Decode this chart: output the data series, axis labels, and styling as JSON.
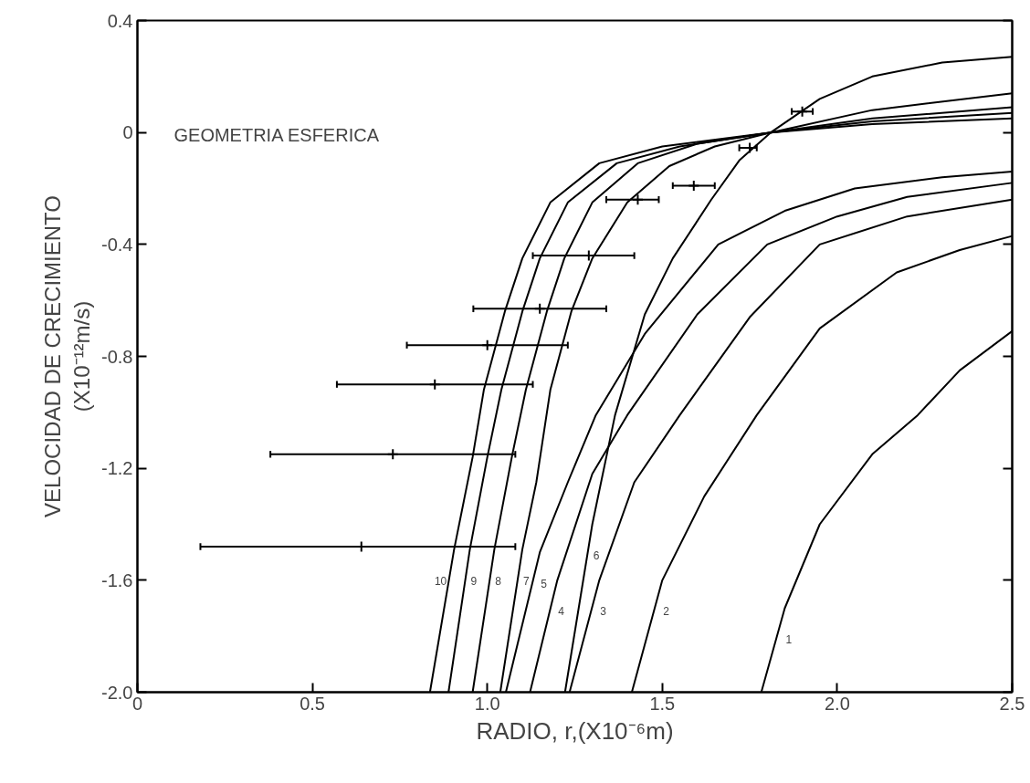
{
  "chart_data": {
    "type": "line",
    "xlabel": "RADIO, r,(X10⁻⁶m)",
    "ylabel": "VELOCIDAD DE CRECIMIENTO\n(X10⁻¹²m/s)",
    "xlim": [
      0,
      2.5
    ],
    "ylim": [
      -2.0,
      0.4
    ],
    "xticks": [
      0,
      0.5,
      {
        "value": 1.0,
        "label": "1.0"
      },
      1.5,
      {
        "value": 2.0,
        "label": "2.0"
      },
      2.5
    ],
    "yticks": [
      0.4,
      0,
      -0.4,
      -0.8,
      -1.2,
      -1.6,
      {
        "value": -2.0,
        "label": "-2.0"
      }
    ],
    "grid": false,
    "marker": "none",
    "line_style": "solid",
    "series": [
      {
        "name": "1",
        "color": "#000000",
        "x": [
          1.783,
          1.85,
          1.95,
          2.1,
          2.23,
          2.35,
          2.5
        ],
        "values": [
          -2,
          -1.7,
          -1.4,
          -1.15,
          -1.01,
          -0.85,
          -0.71
        ]
      },
      {
        "name": "2",
        "color": "#000000",
        "x": [
          1.413,
          1.5,
          1.62,
          1.77,
          1.95,
          2.17,
          2.35,
          2.5
        ],
        "values": [
          -2,
          -1.6,
          -1.3,
          -1.01,
          -0.7,
          -0.5,
          -0.42,
          -0.37
        ]
      },
      {
        "name": "3",
        "color": "#000000",
        "x": [
          1.235,
          1.32,
          1.42,
          1.55,
          1.75,
          1.95,
          2.2,
          2.5
        ],
        "values": [
          -2,
          -1.6,
          -1.25,
          -1.01,
          -0.66,
          -0.4,
          -0.3,
          -0.24
        ]
      },
      {
        "name": "4",
        "color": "#000000",
        "x": [
          1.122,
          1.2,
          1.3,
          1.4,
          1.6,
          1.8,
          2.0,
          2.2,
          2.5
        ],
        "values": [
          -2,
          -1.6,
          -1.22,
          -1.01,
          -0.65,
          -0.4,
          -0.3,
          -0.23,
          -0.18
        ]
      },
      {
        "name": "5",
        "color": "#000000",
        "x": [
          1.053,
          1.15,
          1.23,
          1.31,
          1.45,
          1.66,
          1.85,
          2.05,
          2.3,
          2.5
        ],
        "values": [
          -2,
          -1.5,
          -1.25,
          -1.01,
          -0.72,
          -0.4,
          -0.28,
          -0.2,
          -0.16,
          -0.14
        ]
      },
      {
        "name": "6",
        "color": "#000000",
        "x": [
          1.222,
          1.3,
          1.365,
          1.45,
          1.53,
          1.64,
          1.72,
          1.81,
          1.95,
          2.1,
          2.3,
          2.5
        ],
        "values": [
          -2,
          -1.4,
          -1.01,
          -0.65,
          -0.45,
          -0.24,
          -0.1,
          0,
          0.12,
          0.2,
          0.25,
          0.27
        ]
      },
      {
        "name": "7",
        "color": "#000000",
        "x": [
          1.037,
          1.1,
          1.14,
          1.18,
          1.24,
          1.3,
          1.4,
          1.52,
          1.65,
          1.81,
          2.1,
          2.5
        ],
        "values": [
          -2,
          -1.49,
          -1.25,
          -0.92,
          -0.64,
          -0.45,
          -0.25,
          -0.12,
          -0.05,
          0,
          0.08,
          0.14
        ]
      },
      {
        "name": "8",
        "color": "#000000",
        "x": [
          0.958,
          1.02,
          1.07,
          1.11,
          1.17,
          1.22,
          1.3,
          1.43,
          1.6,
          1.81,
          2.1,
          2.5
        ],
        "values": [
          -2,
          -1.49,
          -1.16,
          -0.92,
          -0.64,
          -0.45,
          -0.25,
          -0.11,
          -0.04,
          0,
          0.05,
          0.09
        ]
      },
      {
        "name": "9",
        "color": "#000000",
        "x": [
          0.889,
          0.95,
          1.0,
          1.04,
          1.1,
          1.15,
          1.23,
          1.37,
          1.55,
          1.81,
          2.1,
          2.5
        ],
        "values": [
          -2,
          -1.49,
          -1.16,
          -0.92,
          -0.64,
          -0.45,
          -0.25,
          -0.11,
          -0.05,
          0,
          0.04,
          0.07
        ]
      },
      {
        "name": "10",
        "color": "#000000",
        "x": [
          0.836,
          0.905,
          0.958,
          0.99,
          1.05,
          1.1,
          1.18,
          1.32,
          1.5,
          1.81,
          2.1,
          2.5
        ],
        "values": [
          -2,
          -1.49,
          -1.16,
          -0.92,
          -0.64,
          -0.45,
          -0.25,
          -0.11,
          -0.05,
          0,
          0.03,
          0.05
        ]
      },
      {
        "type": "scatter",
        "color": "#000000",
        "marker": "cross",
        "x": [
          0.64,
          0.73,
          0.85,
          1.0,
          1.15,
          1.29,
          1.43,
          1.59,
          1.75,
          1.9
        ],
        "values": [
          -1.48,
          -1.15,
          -0.9,
          -0.76,
          -0.63,
          -0.44,
          -0.24,
          -0.19,
          -0.055,
          0.075
        ],
        "xerrors": [
          [
            0.18,
            1.08
          ],
          [
            0.38,
            1.08
          ],
          [
            0.57,
            1.13
          ],
          [
            0.77,
            1.23
          ],
          [
            0.96,
            1.34
          ],
          [
            1.13,
            1.42
          ],
          [
            1.34,
            1.49
          ],
          [
            1.53,
            1.65
          ],
          [
            1.72,
            1.77
          ],
          [
            1.87,
            1.93
          ]
        ]
      }
    ],
    "annotations": [
      "GEOMETRIA  ESFERICA"
    ]
  }
}
